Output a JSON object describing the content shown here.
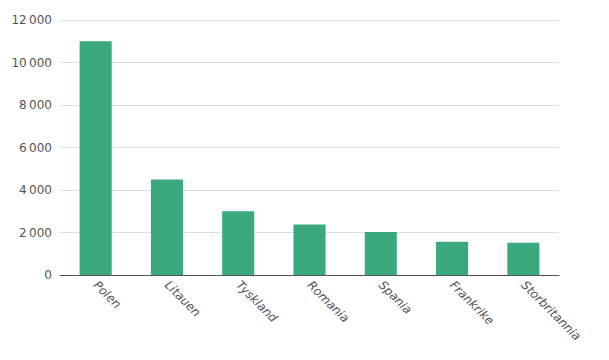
{
  "chart_data": {
    "type": "bar",
    "categories": [
      "Polen",
      "Litauen",
      "Tyskland",
      "Romania",
      "Spania",
      "Frankrike",
      "Storbritannia"
    ],
    "values": [
      11000,
      4500,
      3000,
      2380,
      2020,
      1560,
      1520
    ],
    "color": "#3aaa7e",
    "ylim": [
      0,
      12000
    ],
    "yticks": [
      0,
      {
        "value": 2000,
        "label": "2 000"
      },
      {
        "value": 4000,
        "label": "4 000"
      },
      {
        "value": 6000,
        "label": "6 000"
      },
      {
        "value": 8000,
        "label": "8 000"
      },
      {
        "value": 10000,
        "label": "10 000"
      },
      {
        "value": 12000,
        "label": "12 000"
      }
    ],
    "grid": true
  }
}
